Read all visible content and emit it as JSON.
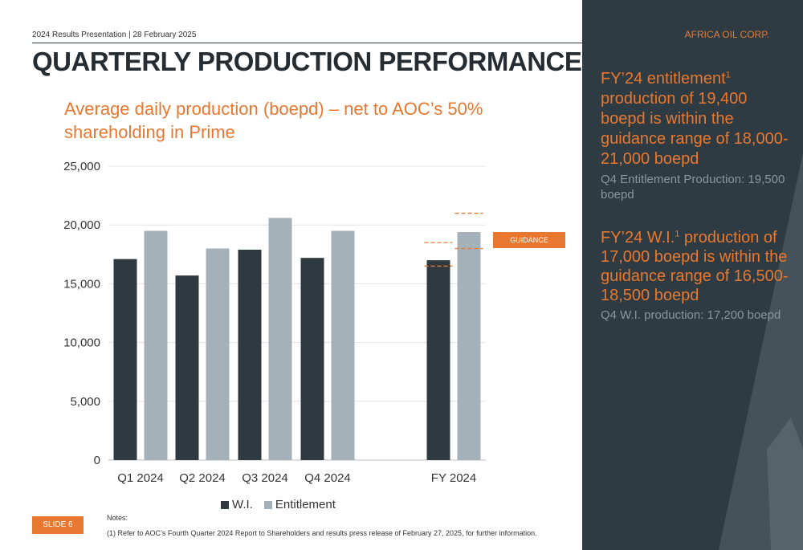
{
  "header": {
    "left_text": "2024 Results Presentation  | 28 February 2025",
    "brand": "AFRICA OIL CORP.",
    "title": "QUARTERLY PRODUCTION PERFORMANCE"
  },
  "subtitle": "Average daily production (boepd) – net to AOC’s 50% shareholding in Prime",
  "guidance_label": "GUIDANCE",
  "right_panel": {
    "stat1": {
      "line_a": "FY’24 entitlement",
      "sup": "1",
      "line_b": "production of 19,400 boepd is within the guidance range of 18,000-21,000 boepd",
      "note": "Q4 Entitlement Production: 19,500 boepd"
    },
    "stat2": {
      "line_a": "FY’24 W.I.",
      "sup": "1",
      "line_b": " production of 17,000 boepd is within the guidance range of 16,500-18,500 boepd",
      "note": "Q4 W.I. production: 17,200 boepd"
    }
  },
  "footer": {
    "slide": "SLIDE 6",
    "notes_title": "Notes:",
    "notes_text": "(1) Refer to AOC’s Fourth Quarter 2024 Report to Shareholders and results press release of February 27, 2025, for further information."
  },
  "colors": {
    "wi": "#2f3a40",
    "entitlement": "#a4b1b9",
    "accent": "#e8782f",
    "panel": "#2f3b42"
  },
  "chart_data": {
    "type": "bar",
    "categories": [
      "Q1 2024",
      "Q2 2024",
      "Q3 2024",
      "Q4 2024",
      "FY 2024"
    ],
    "series": [
      {
        "name": "W.I.",
        "values": [
          17100,
          15700,
          17900,
          17200,
          17000
        ]
      },
      {
        "name": "Entitlement",
        "values": [
          19500,
          18000,
          20600,
          19500,
          19400
        ]
      }
    ],
    "ylim": [
      0,
      25000
    ],
    "yticks": [
      "0",
      "5,000",
      "10,000",
      "15,000",
      "20,000",
      "25,000"
    ],
    "ytick_values": [
      0,
      5000,
      10000,
      15000,
      20000,
      25000
    ],
    "grid": true,
    "legend": "bottom",
    "guidance": {
      "wi": [
        16500,
        18500
      ],
      "entitlement": [
        18000,
        21000
      ]
    }
  }
}
